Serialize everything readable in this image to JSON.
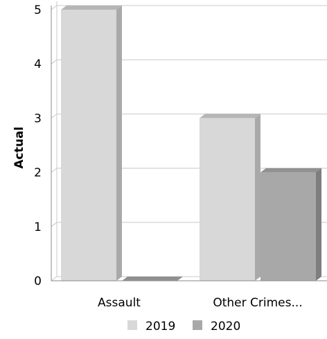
{
  "chart_data": {
    "type": "bar",
    "categories": [
      "Assault",
      "Other Crimes..."
    ],
    "series": [
      {
        "name": "2019",
        "values": [
          5,
          3
        ]
      },
      {
        "name": "2020",
        "values": [
          0,
          2
        ]
      }
    ],
    "title": "",
    "xlabel": "",
    "ylabel": "Actual",
    "ylim": [
      0,
      5
    ],
    "yticks": [
      0,
      1,
      2,
      3,
      4,
      5
    ],
    "grid": true,
    "legend": "bottom",
    "colors": {
      "2019_front": "#d8d8d8",
      "2019_side": "#a9a9a9",
      "2020_front": "#a8a8a8",
      "2020_side": "#7e7e7e",
      "gridline": "#c8c8c8",
      "axis": "#888888"
    }
  }
}
